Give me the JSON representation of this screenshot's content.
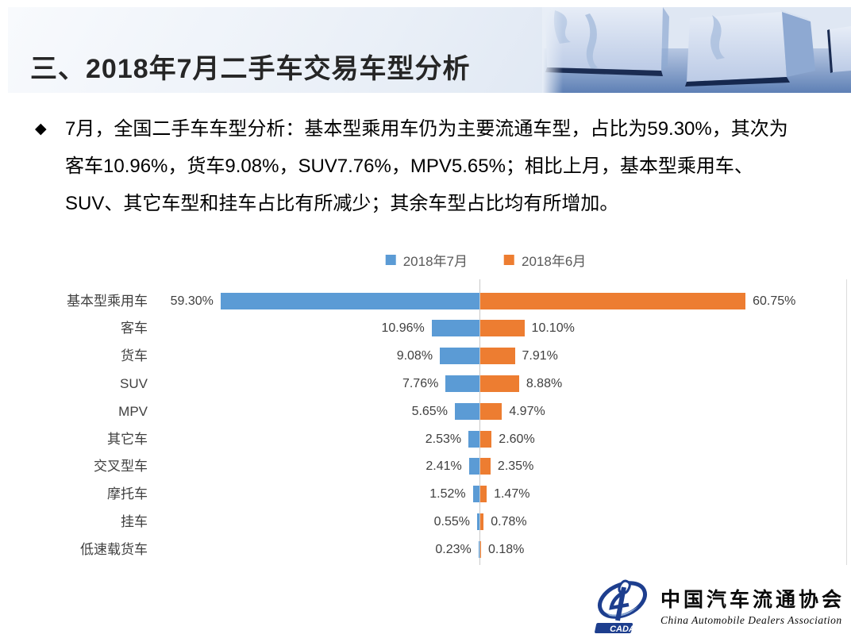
{
  "header": {
    "title": "三、2018年7月二手车交易车型分析"
  },
  "bullet": {
    "marker": "◆",
    "lines": [
      "7月，全国二手车车型分析：基本型乘用车仍为主要流通车型，占比为59.30%，其次为",
      "客车10.96%，货车9.08%，SUV7.76%，MPV5.65%；相比上月，基本型乘用车、",
      "SUV、其它车型和挂车占比有所减少；其余车型占比均有所增加。"
    ]
  },
  "chart_data": {
    "type": "bar",
    "variant": "horizontal-diverging-tornado",
    "title": "",
    "categories": [
      "基本型乘用车",
      "客车",
      "货车",
      "SUV",
      "MPV",
      "其它车",
      "交叉型车",
      "摩托车",
      "挂车",
      "低速载货车"
    ],
    "series": [
      {
        "name": "2018年7月",
        "color": "#5B9BD5",
        "side": "left",
        "values": [
          59.3,
          10.96,
          9.08,
          7.76,
          5.65,
          2.53,
          2.41,
          1.52,
          0.55,
          0.23
        ],
        "labels": [
          "59.30%",
          "10.96%",
          "9.08%",
          "7.76%",
          "5.65%",
          "2.53%",
          "2.41%",
          "1.52%",
          "0.55%",
          "0.23%"
        ]
      },
      {
        "name": "2018年6月",
        "color": "#ED7D31",
        "side": "right",
        "values": [
          60.75,
          10.1,
          7.91,
          8.88,
          4.97,
          2.6,
          2.35,
          1.47,
          0.78,
          0.18
        ],
        "labels": [
          "60.75%",
          "10.10%",
          "7.91%",
          "8.88%",
          "4.97%",
          "2.60%",
          "2.35%",
          "1.47%",
          "0.78%",
          "0.18%"
        ]
      }
    ],
    "unit": "percent",
    "legend_position": "top-center",
    "gridlines": false,
    "center_axis_line": true,
    "value_axis_range_each_side": [
      0,
      66
    ]
  },
  "logo": {
    "acronym": "CADA",
    "name_cn": "中国汽车流通协会",
    "name_en": "China Automobile Dealers Association"
  },
  "colors": {
    "series_july": "#5B9BD5",
    "series_june": "#ED7D31",
    "band_light": "#f8fafd",
    "band_blue": "#d3deee",
    "title_text": "#262626",
    "category_text": "#404040",
    "value_text": "#3f3f3f",
    "legend_text": "#595959",
    "axis_line": "#C9C9C9",
    "logo_blue": "#1d3e8e"
  }
}
